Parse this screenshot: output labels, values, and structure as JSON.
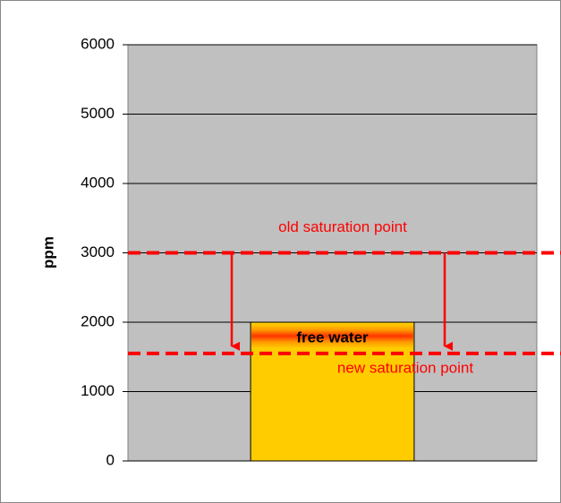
{
  "chart_data": {
    "type": "bar",
    "ylabel": "ppm",
    "categories": [
      null
    ],
    "values": [
      2000
    ],
    "color": "#ffcc00",
    "ylim": [
      0,
      6000
    ],
    "yticks": [
      0,
      1000,
      2000,
      3000,
      4000,
      5000,
      6000
    ],
    "grid": true,
    "annotation": "free water",
    "reference_lines": [
      {
        "label": "old saturation point",
        "value": 3000,
        "color": "#ff0000"
      },
      {
        "label": "new  saturation point",
        "value": 1550,
        "color": "#ff0000"
      }
    ]
  }
}
